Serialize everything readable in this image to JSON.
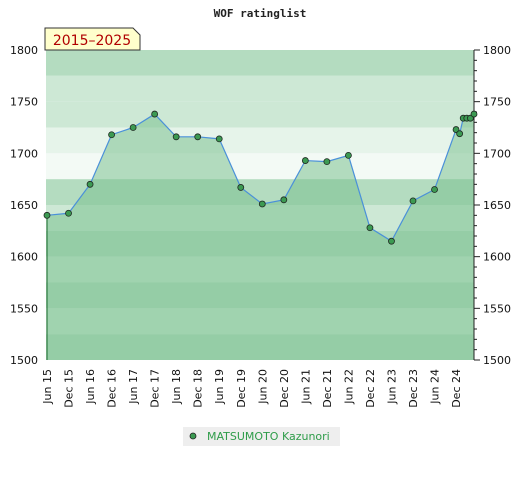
{
  "colors": {
    "area_fill": "#7cc18f",
    "line": "#4a90d9",
    "marker": "#3c9a52",
    "legend_bg": "#eeeeee",
    "badge_bg": "#ffffcc",
    "badge_text": "#b00000",
    "band_dark": "#b4dcc0",
    "band_mid": "#cde8d5",
    "band_light": "#e6f4ea",
    "band_lightest": "#f3faf5"
  },
  "chart_data": {
    "type": "line",
    "title": "WOF ratinglist",
    "badge": "2015–2025",
    "xlabel": "",
    "ylabel": "",
    "ylim": [
      1500,
      1800
    ],
    "yticks": [
      1500,
      1550,
      1600,
      1650,
      1700,
      1750,
      1800
    ],
    "grid": false,
    "legend_position": "bottom-center",
    "x_tick_labels": [
      "Jun 15",
      "Dec 15",
      "Jun 16",
      "Dec 16",
      "Jun 17",
      "Dec 17",
      "Jun 18",
      "Dec 18",
      "Jun 19",
      "Dec 19",
      "Jun 20",
      "Dec 20",
      "Jun 21",
      "Dec 21",
      "Jun 22",
      "Dec 22",
      "Jun 23",
      "Dec 23",
      "Jun 24",
      "Dec 24"
    ],
    "series": [
      {
        "name": "MATSUMOTO Kazunori",
        "points": [
          {
            "x": "2015-06",
            "y": 1640
          },
          {
            "x": "2015-12",
            "y": 1642
          },
          {
            "x": "2016-06",
            "y": 1670
          },
          {
            "x": "2016-12",
            "y": 1718
          },
          {
            "x": "2017-06",
            "y": 1725
          },
          {
            "x": "2017-12",
            "y": 1738
          },
          {
            "x": "2018-06",
            "y": 1716
          },
          {
            "x": "2018-12",
            "y": 1716
          },
          {
            "x": "2019-06",
            "y": 1714
          },
          {
            "x": "2019-12",
            "y": 1667
          },
          {
            "x": "2020-06",
            "y": 1651
          },
          {
            "x": "2020-12",
            "y": 1655
          },
          {
            "x": "2021-06",
            "y": 1693
          },
          {
            "x": "2021-12",
            "y": 1692
          },
          {
            "x": "2022-06",
            "y": 1698
          },
          {
            "x": "2022-12",
            "y": 1628
          },
          {
            "x": "2023-06",
            "y": 1615
          },
          {
            "x": "2023-12",
            "y": 1654
          },
          {
            "x": "2024-06",
            "y": 1665
          },
          {
            "x": "2024-12",
            "y": 1723
          },
          {
            "x": "2025-01",
            "y": 1719
          },
          {
            "x": "2025-02",
            "y": 1734
          },
          {
            "x": "2025-03",
            "y": 1734
          },
          {
            "x": "2025-04",
            "y": 1734
          },
          {
            "x": "2025-05",
            "y": 1738
          }
        ]
      }
    ]
  }
}
